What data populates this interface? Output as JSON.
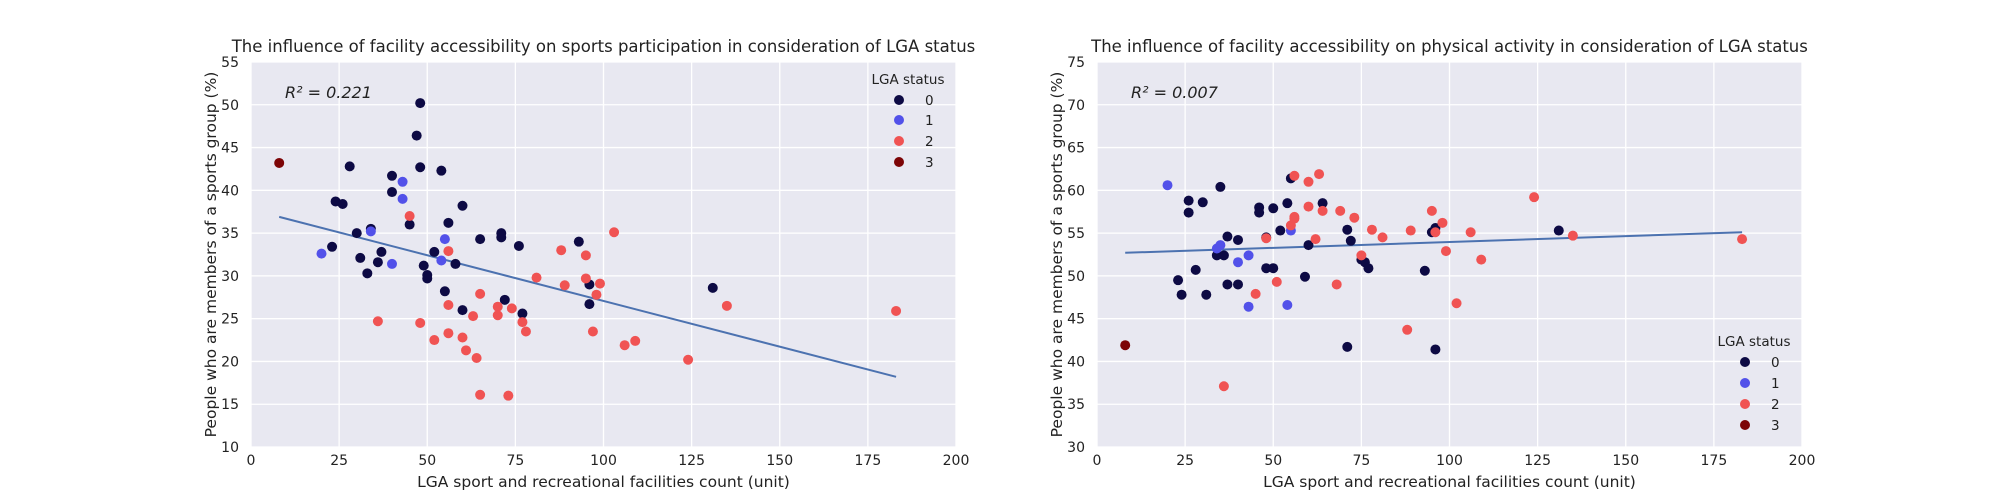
{
  "colors": {
    "status_0": "#0d0a44",
    "status_1": "#5251e9",
    "status_2": "#f05353",
    "status_3": "#7c0406",
    "fit_line": "#4c72b0",
    "plot_background": "#e8e8f1"
  },
  "chart_data": [
    {
      "type": "scatter",
      "title": "The influence of facility accessibility on sports participation in consideration of LGA status",
      "xlabel": "LGA sport and recreational facilities count (unit)",
      "ylabel": "People who are members of a sports group (%)",
      "xlim": [
        0,
        200
      ],
      "ylim": [
        10,
        55
      ],
      "xticks": [
        0,
        25,
        50,
        75,
        100,
        125,
        150,
        175,
        200
      ],
      "yticks": [
        10,
        15,
        20,
        25,
        30,
        35,
        40,
        45,
        50,
        55
      ],
      "grid": true,
      "annotation": "R² = 0.221",
      "legend": {
        "title": "LGA status",
        "position": "top-right",
        "entries": [
          "0",
          "1",
          "2",
          "3"
        ]
      },
      "fit_line": {
        "x": [
          8,
          183
        ],
        "y": [
          36.9,
          18.2
        ]
      },
      "series": [
        {
          "name": "0",
          "points": [
            [
              23,
              33.4
            ],
            [
              24,
              38.7
            ],
            [
              26,
              38.4
            ],
            [
              28,
              42.8
            ],
            [
              30,
              35.0
            ],
            [
              31,
              32.1
            ],
            [
              33,
              30.3
            ],
            [
              34,
              35.5
            ],
            [
              36,
              31.6
            ],
            [
              37,
              32.8
            ],
            [
              40,
              39.8
            ],
            [
              40,
              41.7
            ],
            [
              45,
              36.0
            ],
            [
              47,
              46.4
            ],
            [
              48,
              50.2
            ],
            [
              48,
              42.7
            ],
            [
              49,
              31.2
            ],
            [
              50,
              29.7
            ],
            [
              50,
              30.1
            ],
            [
              52,
              32.8
            ],
            [
              54,
              42.3
            ],
            [
              55,
              28.2
            ],
            [
              56,
              36.2
            ],
            [
              58,
              31.4
            ],
            [
              60,
              38.2
            ],
            [
              60,
              26.0
            ],
            [
              65,
              34.3
            ],
            [
              71,
              34.5
            ],
            [
              71,
              35.0
            ],
            [
              72,
              27.2
            ],
            [
              76,
              33.5
            ],
            [
              77,
              25.6
            ],
            [
              93,
              34.0
            ],
            [
              96,
              29.0
            ],
            [
              96,
              26.7
            ],
            [
              131,
              28.6
            ]
          ]
        },
        {
          "name": "1",
          "points": [
            [
              20,
              32.6
            ],
            [
              34,
              35.2
            ],
            [
              40,
              31.4
            ],
            [
              43,
              41.0
            ],
            [
              43,
              39.0
            ],
            [
              54,
              31.8
            ],
            [
              55,
              34.3
            ]
          ]
        },
        {
          "name": "2",
          "points": [
            [
              36,
              24.7
            ],
            [
              45,
              37.0
            ],
            [
              48,
              24.5
            ],
            [
              52,
              22.5
            ],
            [
              56,
              26.6
            ],
            [
              56,
              23.3
            ],
            [
              56,
              32.9
            ],
            [
              60,
              22.8
            ],
            [
              61,
              21.3
            ],
            [
              63,
              25.3
            ],
            [
              64,
              20.4
            ],
            [
              65,
              16.1
            ],
            [
              65,
              27.9
            ],
            [
              70,
              26.4
            ],
            [
              70,
              25.4
            ],
            [
              73,
              16.0
            ],
            [
              74,
              26.2
            ],
            [
              77,
              24.6
            ],
            [
              78,
              23.5
            ],
            [
              81,
              29.8
            ],
            [
              88,
              33.0
            ],
            [
              89,
              28.9
            ],
            [
              95,
              32.4
            ],
            [
              95,
              29.7
            ],
            [
              97,
              23.5
            ],
            [
              98,
              27.8
            ],
            [
              99,
              29.1
            ],
            [
              103,
              35.1
            ],
            [
              106,
              21.9
            ],
            [
              109,
              22.4
            ],
            [
              124,
              20.2
            ],
            [
              135,
              26.5
            ],
            [
              183,
              25.9
            ]
          ]
        },
        {
          "name": "3",
          "points": [
            [
              8,
              43.2
            ]
          ]
        }
      ]
    },
    {
      "type": "scatter",
      "title": "The influence of facility accessibility on physical activity in consideration of LGA status",
      "xlabel": "LGA sport and recreational facilities count (unit)",
      "ylabel": "People who are members of a sports group (%)",
      "xlim": [
        0,
        200
      ],
      "ylim": [
        30,
        75
      ],
      "xticks": [
        0,
        25,
        50,
        75,
        100,
        125,
        150,
        175,
        200
      ],
      "yticks": [
        30,
        35,
        40,
        45,
        50,
        55,
        60,
        65,
        70,
        75
      ],
      "grid": true,
      "annotation": "R² = 0.007",
      "legend": {
        "title": "LGA status",
        "position": "bottom-right",
        "entries": [
          "0",
          "1",
          "2",
          "3"
        ]
      },
      "fit_line": {
        "x": [
          8,
          183
        ],
        "y": [
          52.7,
          55.1
        ]
      },
      "series": [
        {
          "name": "0",
          "points": [
            [
              23,
              49.5
            ],
            [
              24,
              47.8
            ],
            [
              26,
              58.8
            ],
            [
              26,
              57.4
            ],
            [
              28,
              50.7
            ],
            [
              30,
              58.6
            ],
            [
              31,
              47.8
            ],
            [
              34,
              52.4
            ],
            [
              35,
              60.4
            ],
            [
              36,
              52.4
            ],
            [
              37,
              49.0
            ],
            [
              37,
              54.6
            ],
            [
              40,
              54.2
            ],
            [
              40,
              49.0
            ],
            [
              46,
              58.0
            ],
            [
              46,
              57.4
            ],
            [
              48,
              50.9
            ],
            [
              48,
              54.5
            ],
            [
              50,
              57.9
            ],
            [
              50,
              50.9
            ],
            [
              52,
              55.3
            ],
            [
              54,
              58.5
            ],
            [
              55,
              61.4
            ],
            [
              59,
              49.9
            ],
            [
              60,
              53.6
            ],
            [
              64,
              58.5
            ],
            [
              71,
              55.4
            ],
            [
              71,
              41.7
            ],
            [
              72,
              54.1
            ],
            [
              75,
              51.9
            ],
            [
              76,
              51.6
            ],
            [
              77,
              50.9
            ],
            [
              93,
              50.6
            ],
            [
              95,
              55.1
            ],
            [
              96,
              41.4
            ],
            [
              96,
              55.6
            ],
            [
              131,
              55.3
            ]
          ]
        },
        {
          "name": "1",
          "points": [
            [
              20,
              60.6
            ],
            [
              34,
              53.2
            ],
            [
              35,
              53.6
            ],
            [
              40,
              51.6
            ],
            [
              43,
              46.4
            ],
            [
              43,
              52.4
            ],
            [
              54,
              46.6
            ],
            [
              55,
              55.3
            ]
          ]
        },
        {
          "name": "2",
          "points": [
            [
              36,
              37.1
            ],
            [
              45,
              47.9
            ],
            [
              48,
              54.4
            ],
            [
              51,
              49.3
            ],
            [
              55,
              55.9
            ],
            [
              56,
              61.7
            ],
            [
              56,
              56.9
            ],
            [
              56,
              56.7
            ],
            [
              60,
              61.0
            ],
            [
              60,
              58.1
            ],
            [
              62,
              54.3
            ],
            [
              63,
              61.9
            ],
            [
              64,
              57.6
            ],
            [
              68,
              49.0
            ],
            [
              69,
              57.6
            ],
            [
              73,
              56.8
            ],
            [
              75,
              52.4
            ],
            [
              78,
              55.4
            ],
            [
              81,
              54.5
            ],
            [
              88,
              43.7
            ],
            [
              89,
              55.3
            ],
            [
              95,
              57.6
            ],
            [
              96,
              55.1
            ],
            [
              98,
              56.2
            ],
            [
              99,
              52.9
            ],
            [
              102,
              46.8
            ],
            [
              106,
              55.1
            ],
            [
              109,
              51.9
            ],
            [
              124,
              59.2
            ],
            [
              135,
              54.7
            ],
            [
              183,
              54.3
            ]
          ]
        },
        {
          "name": "3",
          "points": [
            [
              8,
              41.9
            ]
          ]
        }
      ]
    }
  ]
}
